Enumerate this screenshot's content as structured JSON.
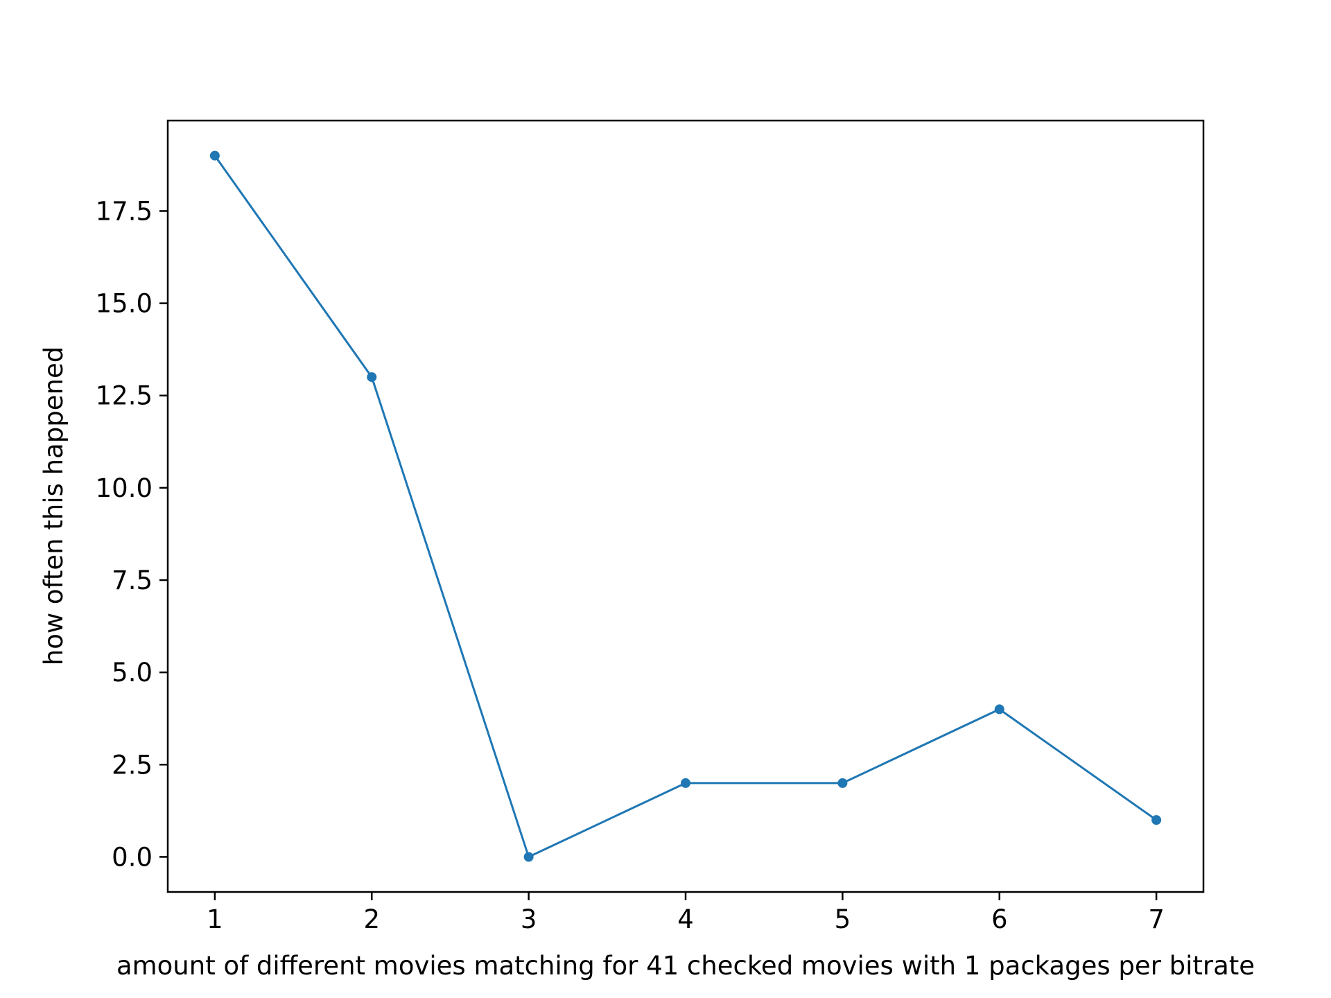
{
  "chart_data": {
    "type": "line",
    "title": "",
    "xlabel": "amount of different movies matching for 41 checked movies with 1 packages per bitrate",
    "ylabel": "how often this happened",
    "x": [
      1,
      2,
      3,
      4,
      5,
      6,
      7
    ],
    "series": [
      {
        "values": [
          19,
          13,
          0,
          2,
          2,
          4,
          1
        ],
        "color": "#1f77b4",
        "marker": "circle"
      }
    ],
    "xlim": [
      0.7,
      7.3
    ],
    "ylim": [
      -0.95,
      19.95
    ],
    "x_ticks": [
      1,
      2,
      3,
      4,
      5,
      6,
      7
    ],
    "x_tick_labels": [
      "1",
      "2",
      "3",
      "4",
      "5",
      "6",
      "7"
    ],
    "y_ticks": [
      0,
      2.5,
      5,
      7.5,
      10,
      12.5,
      15,
      17.5
    ],
    "y_tick_labels": [
      "0.0",
      "2.5",
      "5.0",
      "7.5",
      "10.0",
      "12.5",
      "15.0",
      "17.5"
    ],
    "grid": false,
    "legend": "none"
  }
}
